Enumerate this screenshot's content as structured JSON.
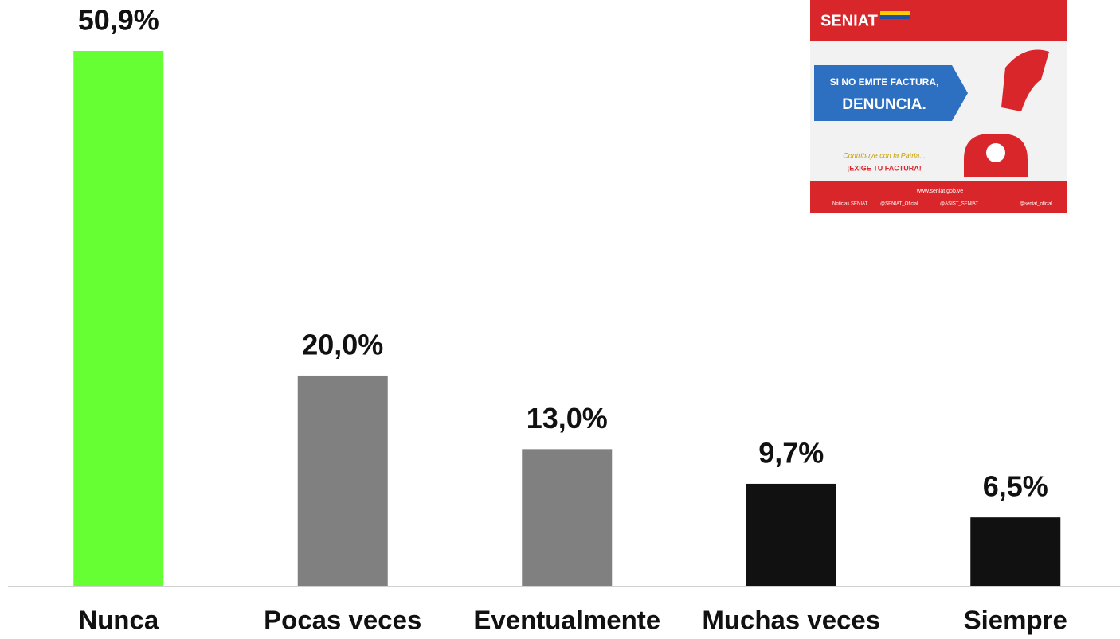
{
  "chart_data": {
    "type": "bar",
    "categories": [
      "Nunca",
      "Pocas veces",
      "Eventualmente",
      "Muchas veces",
      "Siempre"
    ],
    "values": [
      50.9,
      20.0,
      13.0,
      9.7,
      6.5
    ],
    "value_labels": [
      "50,9%",
      "20,0%",
      "13,0%",
      "9,7%",
      "6,5%"
    ],
    "colors": [
      "#66ff33",
      "#808080",
      "#808080",
      "#111111",
      "#111111"
    ]
  },
  "inset": {
    "brand": "SENIAT",
    "line1": "SI NO EMITE FACTURA,",
    "line2": "DENUNCIA.",
    "slogan": "Contribuye con la Patria...",
    "cta": "¡EXIGE TU FACTURA!",
    "web": "www.seniat.gob.ve",
    "social": [
      "Noticias SENIAT",
      "@SENIAT_Oficial",
      "@ASIST_SENIAT",
      "@seniat_oficial"
    ]
  }
}
